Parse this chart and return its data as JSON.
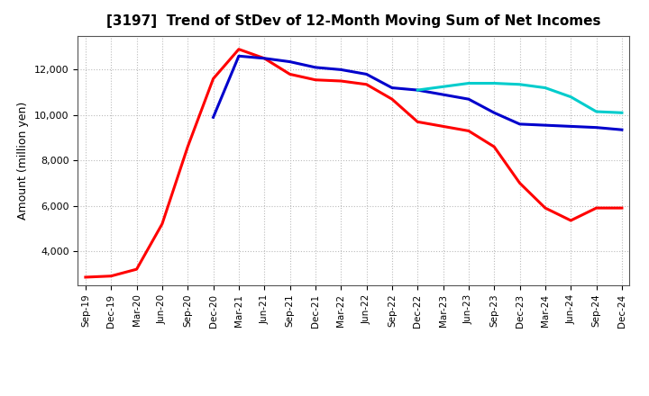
{
  "title": "[3197]  Trend of StDev of 12-Month Moving Sum of Net Incomes",
  "ylabel": "Amount (million yen)",
  "background_color": "#ffffff",
  "plot_bg_color": "#ffffff",
  "grid_color": "#bbbbbb",
  "ylim": [
    2500,
    13500
  ],
  "yticks": [
    4000,
    6000,
    8000,
    10000,
    12000
  ],
  "series": {
    "3 Years": {
      "color": "#ff0000",
      "linewidth": 2.2,
      "data": {
        "Sep-19": 2850,
        "Dec-19": 2900,
        "Mar-20": 3200,
        "Jun-20": 5200,
        "Sep-20": 8600,
        "Dec-20": 11600,
        "Mar-21": 12900,
        "Jun-21": 12500,
        "Sep-21": 11800,
        "Dec-21": 11550,
        "Mar-22": 11500,
        "Jun-22": 11350,
        "Sep-22": 10700,
        "Dec-22": 9700,
        "Mar-23": 9500,
        "Jun-23": 9300,
        "Sep-23": 8600,
        "Dec-23": 7000,
        "Mar-24": 5900,
        "Jun-24": 5350,
        "Sep-24": 5900,
        "Dec-24": 5900
      }
    },
    "5 Years": {
      "color": "#0000cc",
      "linewidth": 2.2,
      "data": {
        "Dec-20": 9900,
        "Mar-21": 12600,
        "Jun-21": 12500,
        "Sep-21": 12350,
        "Dec-21": 12100,
        "Mar-22": 12000,
        "Jun-22": 11800,
        "Sep-22": 11200,
        "Dec-22": 11100,
        "Mar-23": 10900,
        "Jun-23": 10700,
        "Sep-23": 10100,
        "Dec-23": 9600,
        "Mar-24": 9550,
        "Jun-24": 9500,
        "Sep-24": 9450,
        "Dec-24": 9350
      }
    },
    "7 Years": {
      "color": "#00cccc",
      "linewidth": 2.2,
      "data": {
        "Dec-22": 11100,
        "Mar-23": 11250,
        "Jun-23": 11400,
        "Sep-23": 11400,
        "Dec-23": 11350,
        "Mar-24": 11200,
        "Jun-24": 10800,
        "Sep-24": 10150,
        "Dec-24": 10100
      }
    },
    "10 Years": {
      "color": "#008800",
      "linewidth": 2.2,
      "data": {}
    }
  },
  "xtick_labels": [
    "Sep-19",
    "Dec-19",
    "Mar-20",
    "Jun-20",
    "Sep-20",
    "Dec-20",
    "Mar-21",
    "Jun-21",
    "Sep-21",
    "Dec-21",
    "Mar-22",
    "Jun-22",
    "Sep-22",
    "Dec-22",
    "Mar-23",
    "Jun-23",
    "Sep-23",
    "Dec-23",
    "Mar-24",
    "Jun-24",
    "Sep-24",
    "Dec-24"
  ]
}
